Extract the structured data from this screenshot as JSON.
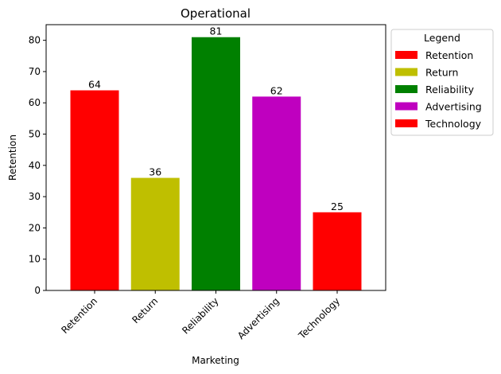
{
  "chart_data": {
    "type": "bar",
    "title": "Operational",
    "xlabel": "Marketing",
    "ylabel": "Retention",
    "categories": [
      "Retention",
      "Return",
      "Reliability",
      "Advertising",
      "Technology"
    ],
    "values": [
      64,
      36,
      81,
      62,
      25
    ],
    "colors": [
      "#ff0000",
      "#bfbf00",
      "#008000",
      "#bf00bf",
      "#ff0000"
    ],
    "ylim": [
      0,
      85
    ],
    "yticks": [
      0,
      10,
      20,
      30,
      40,
      50,
      60,
      70,
      80
    ],
    "grid": false,
    "legend": {
      "title": "Legend",
      "placement": "outside-upper-right",
      "entries": [
        "Retention",
        "Return",
        "Reliability",
        "Advertising",
        "Technology"
      ]
    }
  }
}
